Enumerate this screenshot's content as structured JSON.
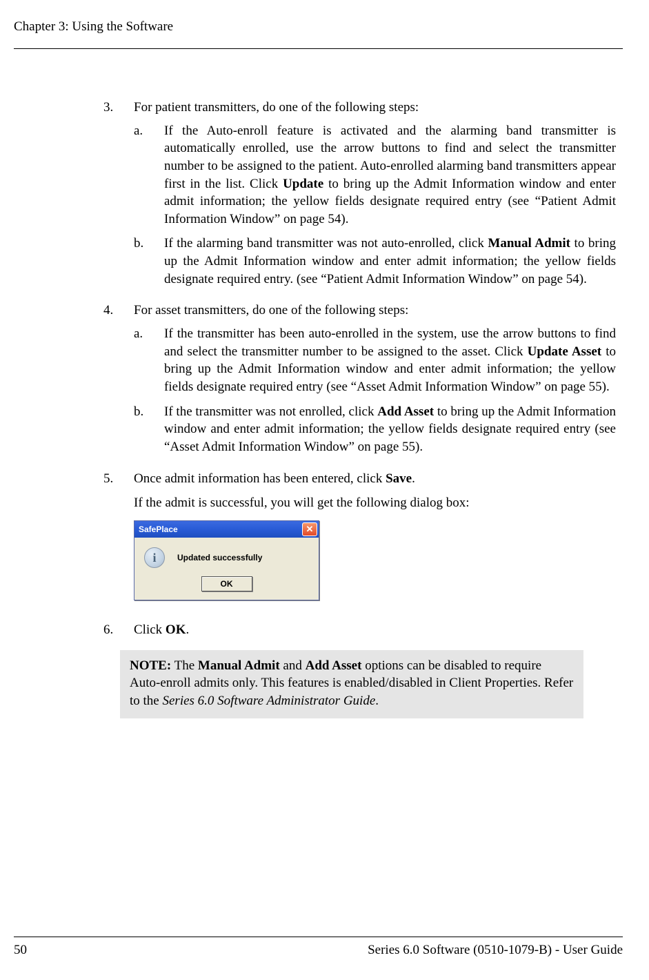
{
  "header": {
    "chapter_title": "Chapter 3: Using the Software"
  },
  "list": {
    "item3": {
      "num": "3.",
      "text": "For patient transmitters, do one of the following steps:",
      "a_letter": "a.",
      "a_pre": "If the Auto-enroll feature is activated and the alarming band transmitter is automatically enrolled, use the arrow buttons to find and select the transmitter number to be assigned to the patient. Auto-enrolled alarming band transmitters appear first in the list. Click ",
      "a_bold": "Update",
      "a_post": " to bring up the Admit Information window and enter admit information; the yellow fields designate required entry (see “Patient Admit Information Window” on page 54).",
      "b_letter": "b.",
      "b_pre": "If the alarming band transmitter was not auto-enrolled, click ",
      "b_bold": "Manual Admit",
      "b_post": " to bring up the Admit Information window and enter admit information; the yellow fields designate required entry. (see “Patient Admit Information Window” on page 54)."
    },
    "item4": {
      "num": "4.",
      "text": "For asset transmitters, do one of the following steps:",
      "a_letter": "a.",
      "a_pre": "If the transmitter has been auto-enrolled in the system, use the arrow buttons to find and select the transmitter number to be assigned to the asset. Click ",
      "a_bold": "Update Asset",
      "a_post": " to bring up the Admit Information window and enter admit information; the yellow fields designate required entry (see “Asset Admit Information Window” on page 55).",
      "b_letter": "b.",
      "b_pre": "If the transmitter was not enrolled, click ",
      "b_bold": "Add Asset",
      "b_post": " to bring up the Admit Information window and enter admit information; the yellow fields designate required entry (see “Asset Admit Information Window” on page 55)."
    },
    "item5": {
      "num": "5.",
      "pre": "Once admit information has been entered, click ",
      "bold": "Save",
      "post": ".",
      "followup": "If the admit is successful, you will get the following dialog box:"
    },
    "item6": {
      "num": "6.",
      "pre": "Click ",
      "bold": "OK",
      "post": "."
    }
  },
  "dialog": {
    "title": "SafePlace",
    "close_glyph": "✕",
    "info_glyph": "i",
    "message": "Updated successfully",
    "ok_label": "OK",
    "colors": {
      "titlebar_start": "#3b6ae0",
      "titlebar_end": "#1e4ec0",
      "body_bg": "#ece9d8",
      "close_start": "#f7976b",
      "close_end": "#e14a2a"
    }
  },
  "note": {
    "label": "NOTE:",
    "pre": " The ",
    "bold1": "Manual Admit",
    "mid1": " and ",
    "bold2": "Add Asset",
    "mid2": " options can be disabled to require Auto-enroll admits only. This features is enabled/disabled in Client Properties. Refer to the ",
    "ital": "Series 6.0 Software Administrator Guide",
    "post": "."
  },
  "footer": {
    "page_number": "50",
    "doc_title": "Series 6.0 Software (0510-1079-B) - User Guide"
  },
  "colors": {
    "note_bg": "#e5e5e5",
    "rule": "#000000",
    "page_bg": "#ffffff"
  }
}
